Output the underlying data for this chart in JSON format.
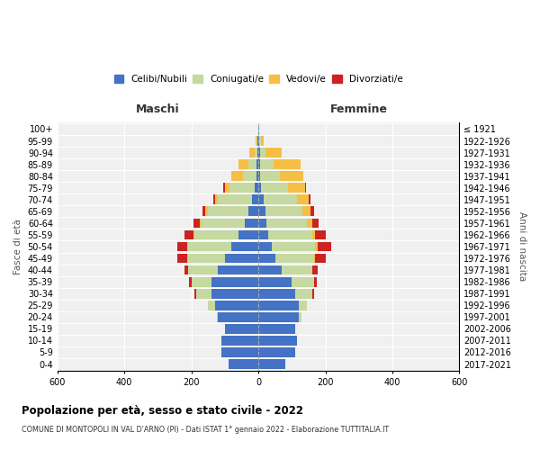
{
  "age_groups": [
    "0-4",
    "5-9",
    "10-14",
    "15-19",
    "20-24",
    "25-29",
    "30-34",
    "35-39",
    "40-44",
    "45-49",
    "50-54",
    "55-59",
    "60-64",
    "65-69",
    "70-74",
    "75-79",
    "80-84",
    "85-89",
    "90-94",
    "95-99",
    "100+"
  ],
  "birth_years": [
    "2017-2021",
    "2012-2016",
    "2007-2011",
    "2002-2006",
    "1997-2001",
    "1992-1996",
    "1987-1991",
    "1982-1986",
    "1977-1981",
    "1972-1976",
    "1967-1971",
    "1962-1966",
    "1957-1961",
    "1952-1956",
    "1947-1951",
    "1942-1946",
    "1937-1941",
    "1932-1936",
    "1927-1931",
    "1922-1926",
    "≤ 1921"
  ],
  "colors": {
    "celibi": "#4472c4",
    "coniugati": "#c5d9a0",
    "vedovi": "#f5bf45",
    "divorziati": "#cc2222"
  },
  "males": {
    "celibi": [
      90,
      110,
      110,
      100,
      120,
      130,
      140,
      140,
      120,
      100,
      80,
      60,
      40,
      30,
      20,
      10,
      5,
      5,
      3,
      2,
      1
    ],
    "coniugati": [
      0,
      0,
      0,
      0,
      5,
      20,
      45,
      60,
      90,
      110,
      130,
      130,
      130,
      120,
      100,
      75,
      40,
      25,
      8,
      3,
      0
    ],
    "vedovi": [
      0,
      0,
      0,
      0,
      0,
      0,
      0,
      0,
      0,
      2,
      3,
      5,
      5,
      8,
      10,
      15,
      35,
      30,
      15,
      3,
      0
    ],
    "divorziati": [
      0,
      0,
      0,
      0,
      0,
      2,
      5,
      8,
      10,
      30,
      30,
      25,
      20,
      10,
      5,
      5,
      0,
      0,
      0,
      0,
      0
    ]
  },
  "females": {
    "nubili": [
      80,
      110,
      115,
      110,
      120,
      120,
      110,
      100,
      70,
      50,
      40,
      30,
      25,
      20,
      15,
      8,
      5,
      5,
      5,
      2,
      1
    ],
    "coniugati": [
      0,
      0,
      0,
      0,
      8,
      25,
      50,
      65,
      90,
      115,
      130,
      130,
      120,
      110,
      100,
      80,
      60,
      40,
      15,
      5,
      0
    ],
    "vedovi": [
      0,
      0,
      0,
      0,
      0,
      0,
      0,
      0,
      2,
      5,
      8,
      10,
      15,
      25,
      35,
      50,
      70,
      80,
      50,
      10,
      0
    ],
    "divorziati": [
      0,
      0,
      0,
      0,
      0,
      0,
      5,
      10,
      15,
      30,
      40,
      30,
      20,
      10,
      5,
      5,
      0,
      0,
      0,
      0,
      0
    ]
  },
  "xlim": 600,
  "title": "Popolazione per età, sesso e stato civile - 2022",
  "subtitle": "COMUNE DI MONTOPOLI IN VAL D'ARNO (PI) - Dati ISTAT 1° gennaio 2022 - Elaborazione TUTTITALIA.IT",
  "ylabel_left": "Fasce di età",
  "ylabel_right": "Anni di nascita",
  "label_maschi": "Maschi",
  "label_femmine": "Femmine",
  "legend_labels": [
    "Celibi/Nubili",
    "Coniugati/e",
    "Vedovi/e",
    "Divorziati/e"
  ],
  "bg_color": "#f0f0f0"
}
